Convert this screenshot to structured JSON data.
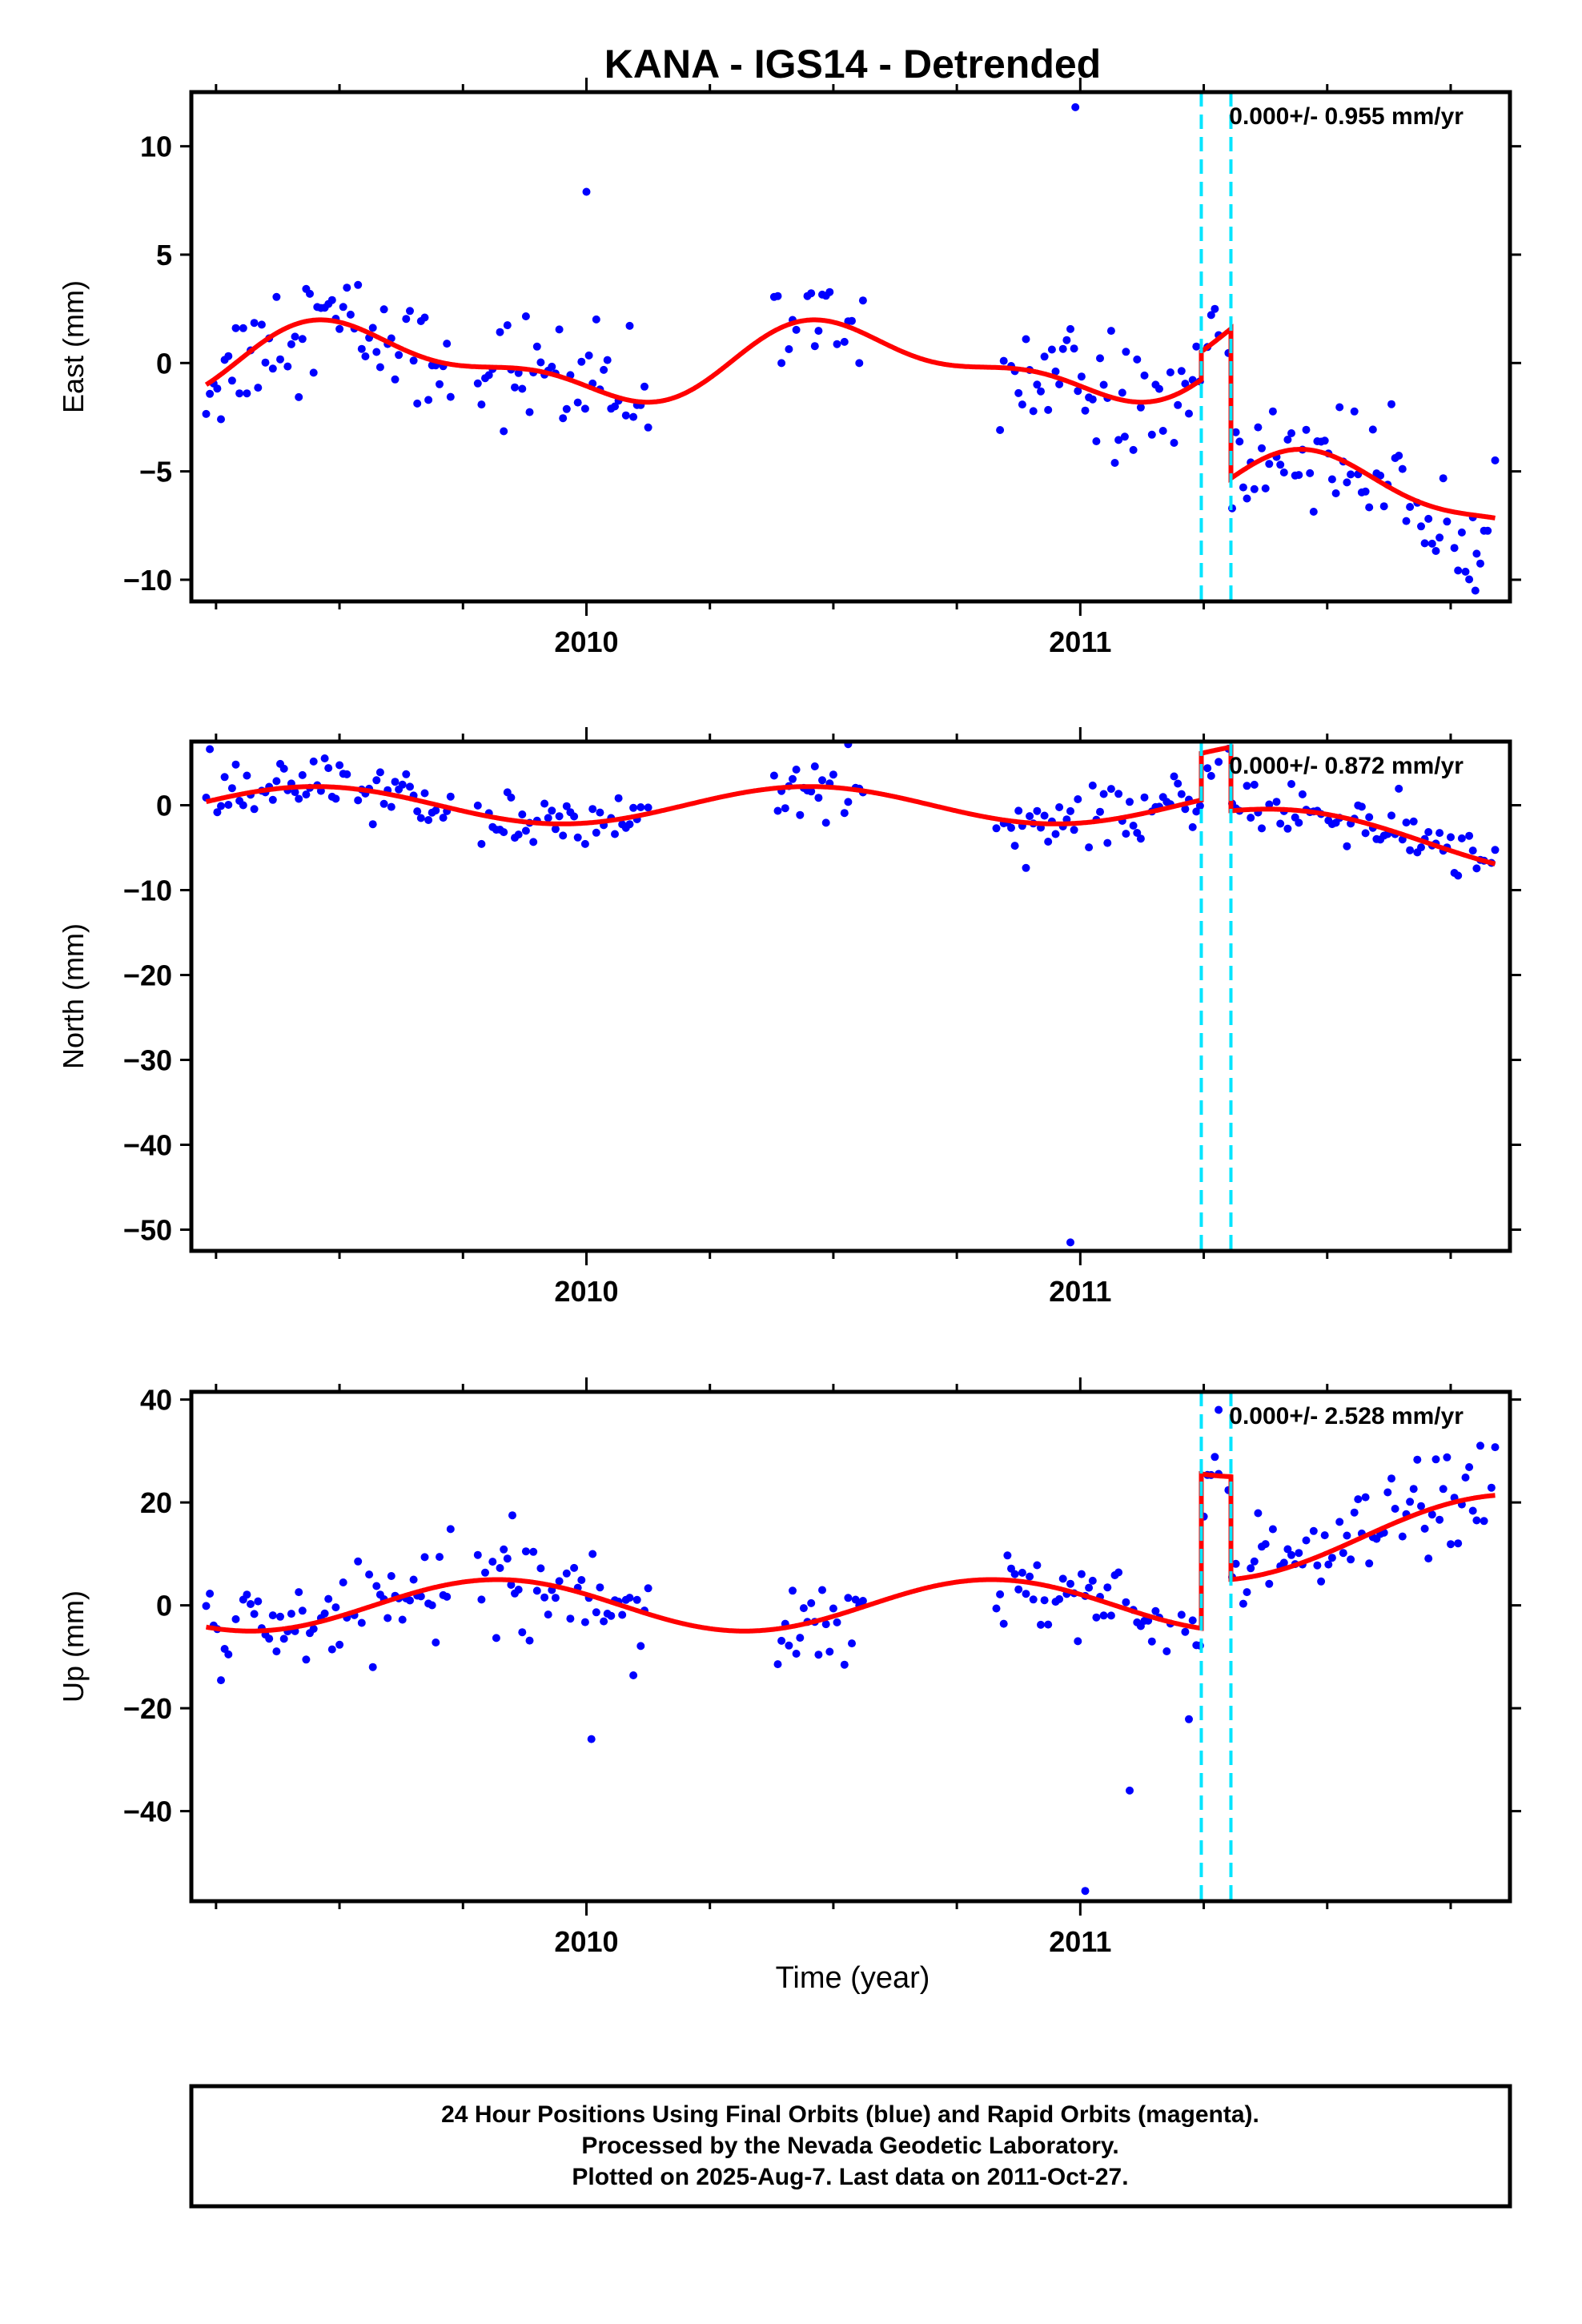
{
  "title": "KANA - IGS14 - Detrended",
  "x_axis_label": "Time (year)",
  "colors": {
    "points": "#0000ff",
    "model": "#ff0000",
    "steps": "#00e5ff",
    "frame": "#000000"
  },
  "footer": {
    "line1": "24 Hour Positions Using Final Orbits (blue) and Rapid Orbits (magenta).",
    "line2": "Processed by the Nevada Geodetic Laboratory.",
    "line3": "Plotted on 2025-Aug-7. Last data on 2011-Oct-27."
  },
  "chart_data": [
    {
      "type": "scatter",
      "ylabel": "East (mm)",
      "rate_label": "0.000+/- 0.955 mm/yr",
      "xlim": [
        2009.2,
        2011.87
      ],
      "ylim": [
        -11.0,
        12.5
      ],
      "yticks": [
        -10,
        -5,
        0,
        5,
        10
      ],
      "xticks": [
        2010,
        2011
      ],
      "xminor": [
        2009.25,
        2009.5,
        2009.75,
        2010.25,
        2010.5,
        2010.75,
        2011.25,
        2011.5,
        2011.75
      ],
      "step_epochs": [
        2011.245,
        2011.305
      ],
      "model": {
        "pre_offset": 0.0,
        "mid_offset": 1.3,
        "post_offset": -5.6,
        "seasonal": [
          {
            "amplitude": 1.5,
            "period_yr": 1.0,
            "phase_yr": 2009.28
          },
          {
            "amplitude": 0.7,
            "period_yr": 0.5,
            "phase_yr": 2009.3
          }
        ],
        "trend_post_mm_per_yr": -2.5
      },
      "scatter_sd": 1.3,
      "data_segments": [
        [
          2009.23,
          2009.73
        ],
        [
          2009.78,
          2010.13
        ],
        [
          2010.38,
          2010.56
        ],
        [
          2010.83,
          2011.28
        ],
        [
          2011.3,
          2011.84
        ]
      ],
      "outliers": [
        {
          "x": 2010.0,
          "y": 7.9
        },
        {
          "x": 2010.99,
          "y": 11.8
        },
        {
          "x": 2011.09,
          "y": -3.4
        },
        {
          "x": 2011.8,
          "y": -10.5
        }
      ]
    },
    {
      "type": "scatter",
      "ylabel": "North (mm)",
      "rate_label": "0.000+/- 0.872 mm/yr",
      "xlim": [
        2009.2,
        2011.87
      ],
      "ylim": [
        -52.5,
        7.5
      ],
      "yticks": [
        -50,
        -40,
        -30,
        -20,
        -10,
        0
      ],
      "xticks": [
        2010,
        2011
      ],
      "xminor": [
        2009.25,
        2009.5,
        2009.75,
        2010.25,
        2010.5,
        2010.75,
        2011.25,
        2011.5,
        2011.75
      ],
      "step_epochs": [
        2011.245,
        2011.305
      ],
      "model": {
        "pre_offset": 0.0,
        "mid_offset": 5.5,
        "post_offset": -2.0,
        "seasonal": [
          {
            "amplitude": 2.2,
            "period_yr": 1.0,
            "phase_yr": 2009.2
          }
        ],
        "trend_post_mm_per_yr": -6.0
      },
      "scatter_sd": 1.6,
      "data_segments": [
        [
          2009.23,
          2009.73
        ],
        [
          2009.78,
          2010.13
        ],
        [
          2010.38,
          2010.56
        ],
        [
          2010.83,
          2011.28
        ],
        [
          2011.3,
          2011.84
        ]
      ],
      "outliers": [
        {
          "x": 2010.53,
          "y": 7.2
        },
        {
          "x": 2010.98,
          "y": -51.5
        }
      ]
    },
    {
      "type": "scatter",
      "ylabel": "Up (mm)",
      "rate_label": "0.000+/- 2.528 mm/yr",
      "xlim": [
        2009.2,
        2011.87
      ],
      "ylim": [
        -57.5,
        41.5
      ],
      "yticks": [
        -40,
        -20,
        0,
        20,
        40
      ],
      "xticks": [
        2010,
        2011
      ],
      "xminor": [
        2009.25,
        2009.5,
        2009.75,
        2010.25,
        2010.5,
        2010.75,
        2011.25,
        2011.5,
        2011.75
      ],
      "step_epochs": [
        2011.245,
        2011.305
      ],
      "model": {
        "pre_offset": 0.0,
        "mid_offset": 30.0,
        "post_offset": 10.0,
        "seasonal": [
          {
            "amplitude": 5.0,
            "period_yr": 1.0,
            "phase_yr": 2009.57
          }
        ],
        "trend_post_mm_per_yr": 12.0
      },
      "scatter_sd": 4.5,
      "data_segments": [
        [
          2009.23,
          2009.73
        ],
        [
          2009.78,
          2010.13
        ],
        [
          2010.38,
          2010.56
        ],
        [
          2010.83,
          2011.28
        ],
        [
          2011.3,
          2011.84
        ]
      ],
      "outliers": [
        {
          "x": 2009.85,
          "y": 17.5
        },
        {
          "x": 2010.01,
          "y": -26.0
        },
        {
          "x": 2011.01,
          "y": -55.5
        },
        {
          "x": 2011.1,
          "y": -36.0
        },
        {
          "x": 2011.28,
          "y": 38.0
        }
      ]
    }
  ]
}
